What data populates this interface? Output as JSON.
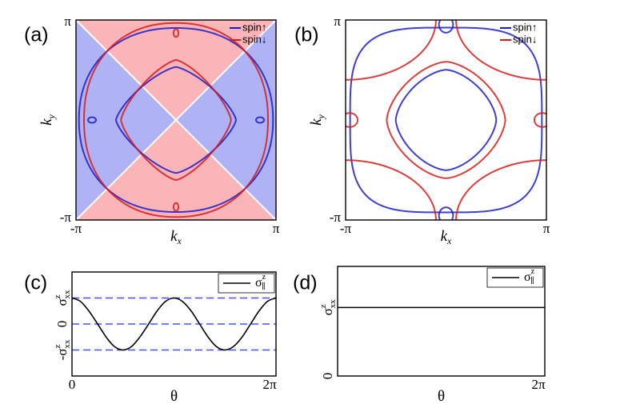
{
  "chart_data": [
    {
      "type": "contour",
      "panel_label": "(a)",
      "xlabel": "k",
      "xlabel_sub": "x",
      "ylabel": "k",
      "ylabel_sub": "y",
      "xlim": [
        -3.1416,
        3.1416
      ],
      "ylim": [
        -3.1416,
        3.1416
      ],
      "xticks": [
        {
          "value": -3.1416,
          "label": "-π"
        },
        {
          "value": 3.1416,
          "label": "π"
        }
      ],
      "yticks": [
        {
          "value": -3.1416,
          "label": "-π"
        },
        {
          "value": 3.1416,
          "label": "π"
        }
      ],
      "series": [
        {
          "name": "spin↑",
          "color": "#1c1cc8"
        },
        {
          "name": "spin↓",
          "color": "#d41c1c"
        }
      ],
      "region_colors": [
        "#fbb4b8",
        "#b0b2f6"
      ],
      "legend": "upper right"
    },
    {
      "type": "contour",
      "panel_label": "(b)",
      "xlabel": "k",
      "xlabel_sub": "x",
      "ylabel": "k",
      "ylabel_sub": "y",
      "xlim": [
        -3.1416,
        3.1416
      ],
      "ylim": [
        -3.1416,
        3.1416
      ],
      "xticks": [
        {
          "value": -3.1416,
          "label": "-π"
        },
        {
          "value": 3.1416,
          "label": "π"
        }
      ],
      "yticks": [
        {
          "value": -3.1416,
          "label": "-π"
        },
        {
          "value": 3.1416,
          "label": "π"
        }
      ],
      "series": [
        {
          "name": "spin↑",
          "color": "#1c1cc8"
        },
        {
          "name": "spin↓",
          "color": "#d41c1c"
        }
      ],
      "legend": "upper right"
    },
    {
      "type": "line",
      "panel_label": "(c)",
      "xlabel": "θ",
      "xlim": [
        0,
        6.2832
      ],
      "ylim": [
        -2,
        2
      ],
      "xticks": [
        0,
        {
          "value": 6.2832,
          "label": "2π"
        }
      ],
      "yticks": [
        {
          "value": -1,
          "label": "-σ",
          "sup": "z",
          "sub": "xx"
        },
        0,
        {
          "value": 1,
          "label": "σ",
          "sup": "z",
          "sub": "xx"
        }
      ],
      "grid": true,
      "grid_color": "#5050ee",
      "series": [
        {
          "name": "σ",
          "name_sup": "z",
          "name_sub": "∥",
          "color": "#000000",
          "x": [
            0,
            0.26,
            0.52,
            0.79,
            1.05,
            1.31,
            1.57,
            1.83,
            2.09,
            2.36,
            2.62,
            2.88,
            3.14,
            3.4,
            3.67,
            3.93,
            4.19,
            4.45,
            4.71,
            4.97,
            5.24,
            5.5,
            5.76,
            6.02,
            6.28
          ],
          "values": [
            1,
            0.87,
            0.5,
            0,
            -0.5,
            -0.87,
            -1,
            -0.87,
            -0.5,
            0,
            0.5,
            0.87,
            1,
            0.87,
            0.5,
            0,
            -0.5,
            -0.87,
            -1,
            -0.87,
            -0.5,
            0,
            0.5,
            0.87,
            1
          ]
        }
      ],
      "legend": "upper right"
    },
    {
      "type": "line",
      "panel_label": "(d)",
      "xlabel": "θ",
      "xlim": [
        0,
        6.2832
      ],
      "ylim": [
        0,
        1.6
      ],
      "xticks": [
        {
          "value": 6.2832,
          "label": "2π"
        }
      ],
      "yticks": [
        0,
        {
          "value": 1,
          "label": "σ",
          "sup": "z",
          "sub": "xx"
        }
      ],
      "grid": false,
      "series": [
        {
          "name": "σ",
          "name_sup": "z",
          "name_sub": "∥",
          "color": "#000000",
          "x": [
            0,
            6.2832
          ],
          "values": [
            1,
            1
          ]
        }
      ],
      "legend": "upper right"
    }
  ]
}
